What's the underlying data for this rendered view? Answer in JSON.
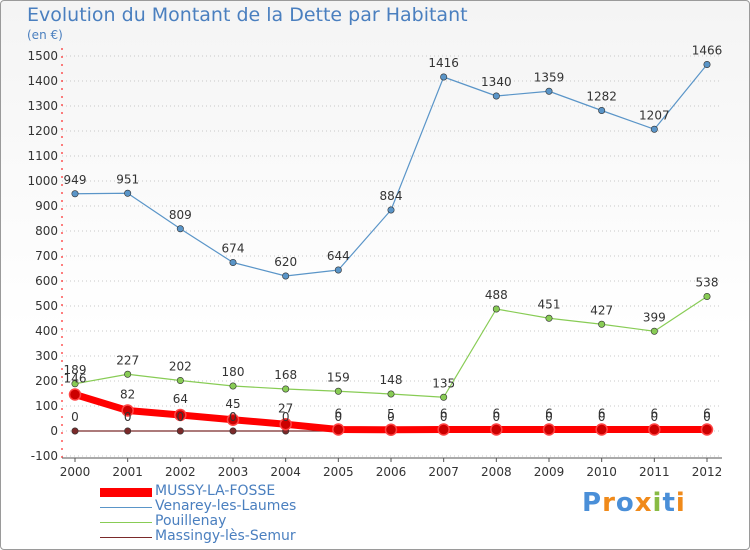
{
  "title": "Evolution du Montant de la Dette par Habitant",
  "subtitle": "(en €)",
  "logo_text": "Proxiti",
  "chart_data": {
    "type": "line",
    "title": "Evolution du Montant de la Dette par Habitant",
    "subtitle": "(en €)",
    "xlabel": "",
    "ylabel": "",
    "ylim": [
      -100,
      1500
    ],
    "yticks": [
      -100,
      0,
      100,
      200,
      300,
      400,
      500,
      600,
      700,
      800,
      900,
      1000,
      1100,
      1200,
      1300,
      1400,
      1500
    ],
    "grid": "horizontal dotted",
    "legend_position": "bottom-left",
    "categories": [
      "2000",
      "2001",
      "2002",
      "2003",
      "2004",
      "2005",
      "2006",
      "2007",
      "2008",
      "2009",
      "2010",
      "2011",
      "2012"
    ],
    "series": [
      {
        "name": "MUSSY-LA-FOSSE",
        "color": "#ff0000",
        "values": [
          146,
          82,
          64,
          45,
          27,
          6,
          5,
          6,
          6,
          6,
          6,
          6,
          6
        ]
      },
      {
        "name": "Venarey-les-Laumes",
        "color": "#5a95c8",
        "values": [
          949,
          951,
          809,
          674,
          620,
          644,
          884,
          1416,
          1340,
          1359,
          1282,
          1207,
          1466
        ]
      },
      {
        "name": "Pouillenay",
        "color": "#88cc55",
        "values": [
          189,
          227,
          202,
          180,
          168,
          159,
          148,
          135,
          488,
          451,
          427,
          399,
          538
        ]
      },
      {
        "name": "Massingy-lès-Semur",
        "color": "#7a2a2a",
        "values": [
          0,
          0,
          0,
          0,
          0,
          0,
          0,
          0,
          0,
          0,
          0,
          0,
          0
        ]
      }
    ]
  }
}
